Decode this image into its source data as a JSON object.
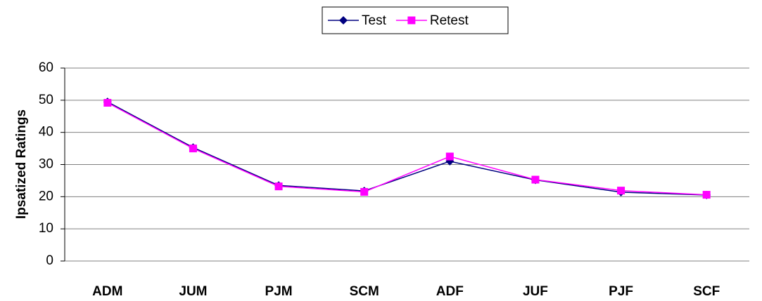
{
  "chart_data": {
    "type": "line",
    "y_label": "Ipsatized Ratings",
    "categories": [
      "ADM",
      "JUM",
      "PJM",
      "SCM",
      "ADF",
      "JUF",
      "PJF",
      "SCF"
    ],
    "series": [
      {
        "name": "Test",
        "color": "#000080",
        "marker": "diamond",
        "values": [
          49.5,
          35.3,
          23.5,
          21.8,
          31,
          25.2,
          21.4,
          20.5
        ]
      },
      {
        "name": "Retest",
        "color": "#ff00ff",
        "marker": "square",
        "values": [
          49.2,
          35,
          23.2,
          21.5,
          32.5,
          25.3,
          21.9,
          20.6
        ]
      }
    ],
    "ylim": [
      0,
      60
    ],
    "yticks": [
      0,
      10,
      20,
      30,
      40,
      50,
      60
    ],
    "grid": true,
    "legend": "top"
  }
}
